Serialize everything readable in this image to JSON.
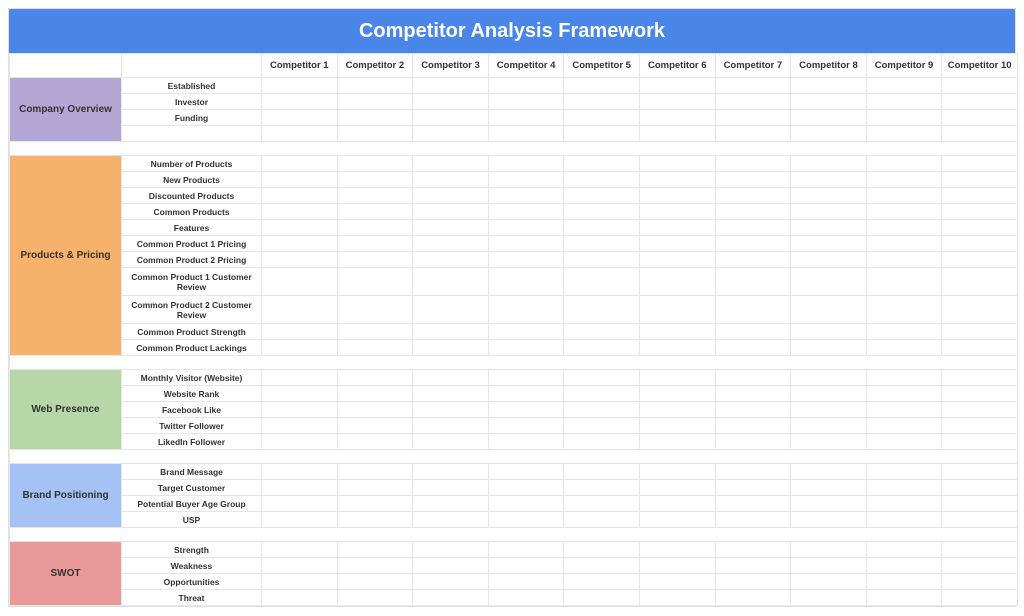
{
  "title": "Competitor Analysis Framework",
  "colors": {
    "title_bg": "#4a86e8",
    "title_text": "#ffffff",
    "border": "#e6e6e6",
    "section_company": "#b4a7d6",
    "section_products": "#f6b26b",
    "section_web": "#b6d7a8",
    "section_brand": "#a4c2f4",
    "section_swot": "#ea9999"
  },
  "competitors": [
    "Competitor 1",
    "Competitor 2",
    "Competitor 3",
    "Competitor 4",
    "Competitor 5",
    "Competitor 6",
    "Competitor 7",
    "Competitor 8",
    "Competitor 9",
    "Competitor 10"
  ],
  "sections": [
    {
      "key": "company",
      "label": "Company Overview",
      "color_key": "section_company",
      "trailing_blank_row": true,
      "rows": [
        {
          "label": "Established"
        },
        {
          "label": "Investor"
        },
        {
          "label": "Funding"
        }
      ]
    },
    {
      "key": "products",
      "label": "Products & Pricing",
      "color_key": "section_products",
      "trailing_blank_row": false,
      "rows": [
        {
          "label": "Number of Products"
        },
        {
          "label": "New Products"
        },
        {
          "label": "Discounted Products"
        },
        {
          "label": "Common Products"
        },
        {
          "label": "Features"
        },
        {
          "label": "Common Product  1 Pricing"
        },
        {
          "label": "Common Product  2 Pricing"
        },
        {
          "label": "Common Product 1 Customer Review",
          "double": true
        },
        {
          "label": "Common Product 2 Customer Review",
          "double": true
        },
        {
          "label": "Common Product Strength"
        },
        {
          "label": "Common Product Lackings"
        }
      ]
    },
    {
      "key": "web",
      "label": "Web Presence",
      "color_key": "section_web",
      "trailing_blank_row": false,
      "rows": [
        {
          "label": "Monthly Visitor (Website)"
        },
        {
          "label": "Website Rank"
        },
        {
          "label": "Facebook Like"
        },
        {
          "label": "Twitter Follower"
        },
        {
          "label": "LikedIn Follower"
        }
      ]
    },
    {
      "key": "brand",
      "label": "Brand Positioning",
      "color_key": "section_brand",
      "trailing_blank_row": false,
      "rows": [
        {
          "label": "Brand Message"
        },
        {
          "label": "Target Customer"
        },
        {
          "label": "Potential Buyer Age Group"
        },
        {
          "label": "USP"
        }
      ]
    },
    {
      "key": "swot",
      "label": "SWOT",
      "color_key": "section_swot",
      "trailing_blank_row": false,
      "rows": [
        {
          "label": "Strength"
        },
        {
          "label": "Weakness"
        },
        {
          "label": "Opportunities"
        },
        {
          "label": "Threat"
        }
      ]
    }
  ]
}
